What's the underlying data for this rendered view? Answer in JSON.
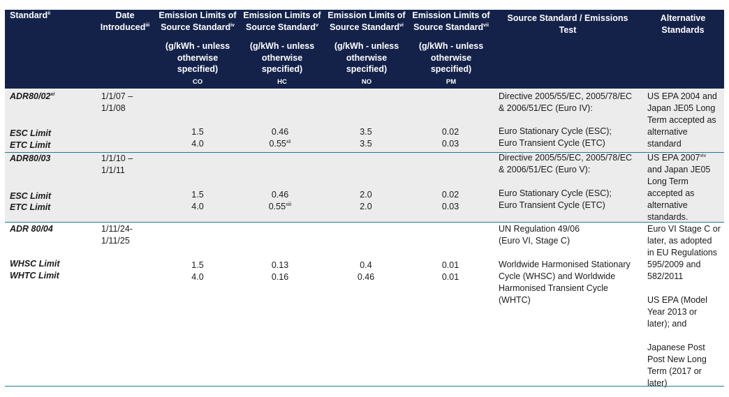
{
  "header": {
    "standard": "Standard",
    "standard_note": "ii",
    "date_line1": "Date",
    "date_line2": "Introduced",
    "date_note": "iii",
    "emission_line1": "Emission Limits of",
    "emission_line2": "Source Standard",
    "emission_notes": [
      "iv",
      "v",
      "vi",
      "vii"
    ],
    "unit_line1": "(g/kWh - unless",
    "unit_line2": "otherwise",
    "unit_line3": "specified)",
    "pollutants": [
      "CO",
      "HC",
      "NO",
      "PM"
    ],
    "source": "Source Standard / Emissions Test",
    "alt_line1": "Alternative",
    "alt_line2": "Standards"
  },
  "rows": [
    {
      "name": "ADR80/02",
      "name_note": "xi",
      "date": [
        "1/1/07 –",
        "1/1/08"
      ],
      "source": [
        "Directive 2005/55/EC, 2005/78/EC",
        "& 2006/51/EC (Euro IV):"
      ],
      "alt": [
        "US EPA 2004 and",
        "Japan JE05 Long",
        "Term accepted as",
        "alternative",
        "standard"
      ],
      "esc": {
        "label": "ESC Limit",
        "co": "1.5",
        "hc": "0.46",
        "no": "3.5",
        "pm": "0.02",
        "test": "Euro Stationary Cycle (ESC);"
      },
      "etc": {
        "label": "ETC Limit",
        "co": "4.0",
        "hc": "0.55",
        "hc_note": "xii",
        "no": "3.5",
        "pm": "0.03",
        "test": "Euro Transient Cycle (ETC)"
      }
    },
    {
      "name": "ADR80/03",
      "date": [
        "1/1/10 –",
        "1/1/11"
      ],
      "source": [
        "Directive 2005/55/EC, 2005/78/EC",
        "& 2006/51/EC (Euro V):"
      ],
      "alt_first": "US EPA 2007",
      "alt_first_note": "xiv",
      "alt": [
        "and Japan JE05",
        "Long Term",
        "accepted as",
        "alternative",
        "standards."
      ],
      "esc": {
        "label": "ESC Limit",
        "co": "1.5",
        "hc": "0.46",
        "no": "2.0",
        "pm": "0.02",
        "test": "Euro Stationary Cycle (ESC);"
      },
      "etc": {
        "label": "ETC Limit",
        "co": "4.0",
        "hc": "0.55",
        "hc_note": "xiii",
        "no": "2.0",
        "pm": "0.03",
        "test": "Euro Transient Cycle (ETC)"
      }
    },
    {
      "name": "ADR 80/04",
      "date": [
        "1/11/24-",
        "1/11/25"
      ],
      "source": [
        "UN Regulation 49/06",
        "(Euro VI, Stage C)"
      ],
      "alt": [
        "Euro VI Stage C or",
        "later, as adopted",
        "in EU Regulations",
        "595/2009 and",
        "582/2011",
        "",
        "US EPA (Model",
        "Year 2013 or",
        "later); and",
        "",
        "Japanese Post",
        "Post New Long",
        "Term (2017 or",
        "later)"
      ],
      "whsc": {
        "label": "WHSC Limit",
        "co": "1.5",
        "hc": "0.13",
        "no": "0.4",
        "pm": "0.01"
      },
      "whtc": {
        "label": "WHTC Limit",
        "co": "4.0",
        "hc": "0.16",
        "no": "0.46",
        "pm": "0.01"
      },
      "test": [
        "Worldwide Harmonised Stationary",
        "Cycle (WHSC) and Worldwide",
        "Harmonised Transient Cycle",
        "(WHTC)"
      ]
    }
  ]
}
